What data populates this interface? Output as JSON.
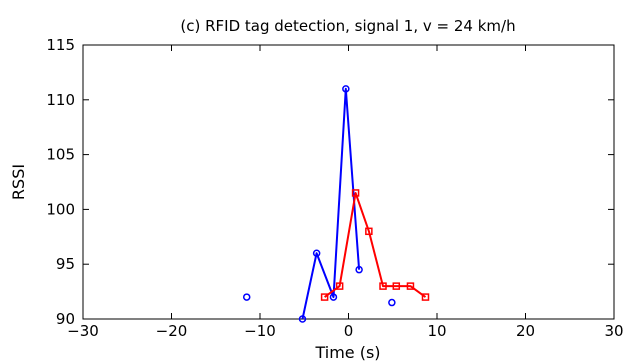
{
  "chart_data": {
    "type": "line",
    "title": "(c) RFID tag detection, signal 1, v = 24 km/h",
    "xlabel": "Time (s)",
    "ylabel": "RSSI",
    "xlim": [
      -30,
      30
    ],
    "ylim": [
      90,
      115
    ],
    "xticks": [
      -30,
      -20,
      -10,
      0,
      10,
      20,
      30
    ],
    "yticks": [
      90,
      95,
      100,
      105,
      110,
      115
    ],
    "xtick_labels": [
      "−30",
      "−20",
      "−10",
      "0",
      "10",
      "20",
      "30"
    ],
    "ytick_labels": [
      "90",
      "95",
      "100",
      "105",
      "110",
      "115"
    ],
    "grid": false,
    "legend": "none",
    "series": [
      {
        "color": "#0000ff",
        "marker": "circle",
        "connected": [
          [
            -5.2,
            90
          ],
          [
            -3.6,
            96
          ],
          [
            -1.7,
            92
          ],
          [
            -0.3,
            111
          ],
          [
            1.2,
            94.5
          ]
        ],
        "isolated": [
          [
            -11.5,
            92
          ],
          [
            4.9,
            91.5
          ]
        ]
      },
      {
        "color": "#ff0000",
        "marker": "square",
        "connected": [
          [
            -2.7,
            92
          ],
          [
            -1.0,
            93
          ],
          [
            0.8,
            101.5
          ],
          [
            2.3,
            98
          ],
          [
            3.9,
            93
          ],
          [
            5.4,
            93
          ],
          [
            7.0,
            93
          ],
          [
            8.7,
            92
          ]
        ],
        "isolated": []
      }
    ]
  }
}
